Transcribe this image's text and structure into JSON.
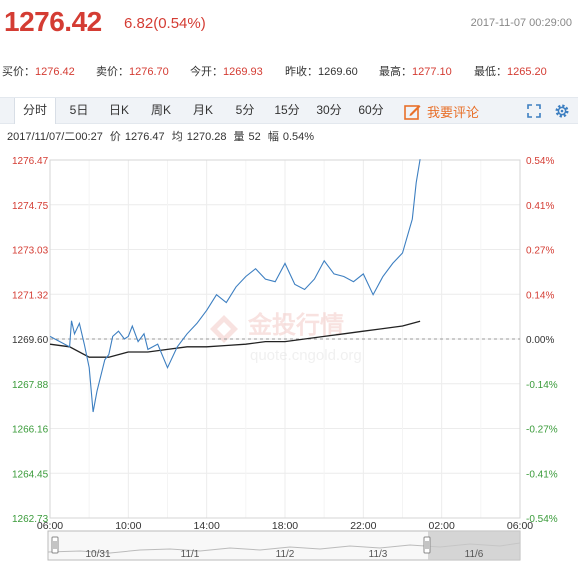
{
  "header": {
    "price": "1276.42",
    "change": "6.82(0.54%)",
    "datetime": "2017-11-07 00:29:00"
  },
  "quote": {
    "buy": {
      "label": "买价：",
      "value": "1276.42"
    },
    "sell": {
      "label": "卖价：",
      "value": "1276.70"
    },
    "open": {
      "label": "今开：",
      "value": "1269.93"
    },
    "prev_close": {
      "label": "昨收：",
      "value": "1269.60"
    },
    "high": {
      "label": "最高：",
      "value": "1277.10"
    },
    "low": {
      "label": "最低：",
      "value": "1265.20"
    }
  },
  "tabs": [
    {
      "label": "分时",
      "active": true
    },
    {
      "label": "5日"
    },
    {
      "label": "日K"
    },
    {
      "label": "周K"
    },
    {
      "label": "月K"
    },
    {
      "label": "5分"
    },
    {
      "label": "15分"
    },
    {
      "label": "30分"
    },
    {
      "label": "60分"
    }
  ],
  "comment_label": "我要评论",
  "infobar": {
    "datetime": "2017/11/07/二00:27",
    "price_label": "价",
    "price": "1276.47",
    "avg_label": "均",
    "avg": "1270.28",
    "vol_label": "量",
    "vol": "52",
    "amp_label": "幅",
    "amp": "0.54%"
  },
  "watermark": {
    "brand": "金投行情",
    "url": "quote.cngold.org"
  },
  "colors": {
    "up": "#d43c33",
    "down": "#3a9b3a",
    "price_line": "#3d7fc1",
    "avg_line": "#222222",
    "accent": "#e8702a"
  },
  "chart_data": {
    "type": "line",
    "y_ticks_left": [
      "1276.47",
      "1274.75",
      "1273.03",
      "1271.32",
      "1269.60",
      "1267.88",
      "1266.16",
      "1264.45",
      "1262.73"
    ],
    "y_ticks_right": [
      "0.54%",
      "0.41%",
      "0.27%",
      "0.14%",
      "0.00%",
      "-0.14%",
      "-0.27%",
      "-0.41%",
      "-0.54%"
    ],
    "x_ticks": [
      "06:00",
      "10:00",
      "14:00",
      "18:00",
      "22:00",
      "02:00",
      "06:00"
    ],
    "ylim": [
      1262.73,
      1276.47
    ],
    "prev_close": 1269.6,
    "x_hours_from_start": [
      0,
      0.5,
      1.0,
      1.1,
      1.25,
      1.5,
      1.75,
      2.0,
      2.2,
      2.4,
      2.6,
      2.8,
      3.0,
      3.2,
      3.5,
      3.8,
      4.0,
      4.2,
      4.5,
      4.8,
      5.0,
      5.5,
      6.0,
      6.5,
      7.0,
      7.5,
      8.0,
      8.5,
      9.0,
      9.5,
      10.0,
      10.5,
      11.0,
      11.5,
      12.0,
      12.5,
      13.0,
      13.5,
      14.0,
      14.5,
      15.0,
      15.5,
      16.0,
      16.5,
      17.0,
      17.5,
      18.0,
      18.5,
      18.7,
      18.9
    ],
    "price_values": [
      1269.7,
      1269.5,
      1269.3,
      1270.3,
      1269.8,
      1270.2,
      1269.4,
      1268.5,
      1266.8,
      1267.6,
      1268.2,
      1268.8,
      1269.0,
      1269.7,
      1269.9,
      1269.6,
      1269.7,
      1270.1,
      1269.5,
      1269.8,
      1269.2,
      1269.4,
      1268.5,
      1269.3,
      1269.8,
      1270.2,
      1270.7,
      1271.3,
      1271.0,
      1271.6,
      1272.0,
      1272.3,
      1271.9,
      1271.8,
      1272.5,
      1271.7,
      1271.5,
      1271.9,
      1272.6,
      1272.1,
      1272.0,
      1271.8,
      1272.1,
      1271.3,
      1272.0,
      1272.5,
      1272.9,
      1274.2,
      1275.6,
      1276.5
    ],
    "avg_x_hours_from_start": [
      0,
      1.0,
      2.0,
      3.0,
      4.0,
      5.0,
      6.0,
      7.0,
      8.0,
      9.0,
      10.0,
      11.0,
      12.0,
      13.0,
      14.0,
      15.0,
      16.0,
      17.0,
      18.0,
      18.9
    ],
    "avg_values": [
      1269.4,
      1269.3,
      1268.9,
      1268.9,
      1269.1,
      1269.1,
      1269.2,
      1269.3,
      1269.3,
      1269.35,
      1269.4,
      1269.5,
      1269.5,
      1269.6,
      1269.7,
      1269.8,
      1269.9,
      1270.0,
      1270.1,
      1270.28
    ],
    "navigator_dates": [
      "10/31",
      "11/1",
      "11/2",
      "11/3",
      "11/6"
    ]
  }
}
